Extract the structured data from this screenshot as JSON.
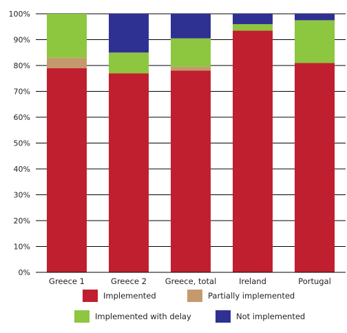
{
  "chart_data": {
    "type": "bar",
    "stacked": true,
    "categories": [
      "Greece 1",
      "Greece 2",
      "Greece, total",
      "Ireland",
      "Portugal"
    ],
    "series": [
      {
        "name": "Implemented",
        "color": "#c01f2f",
        "values": [
          79,
          77,
          78,
          93.5,
          81
        ]
      },
      {
        "name": "Partially implemented",
        "color": "#c49a6c",
        "values": [
          4,
          0,
          1.5,
          0,
          0
        ]
      },
      {
        "name": "Implemented with delay",
        "color": "#8dc63f",
        "values": [
          17,
          8,
          11,
          2.5,
          16.5
        ]
      },
      {
        "name": "Not implemented",
        "color": "#2e3192",
        "values": [
          0,
          15,
          9.5,
          4,
          2.5
        ]
      }
    ],
    "ylim": [
      0,
      100
    ],
    "yticks": [
      "0%",
      "10%",
      "20%",
      "30%",
      "40%",
      "50%",
      "60%",
      "70%",
      "80%",
      "90%",
      "100%"
    ],
    "grid": true,
    "legend_position": "bottom"
  }
}
